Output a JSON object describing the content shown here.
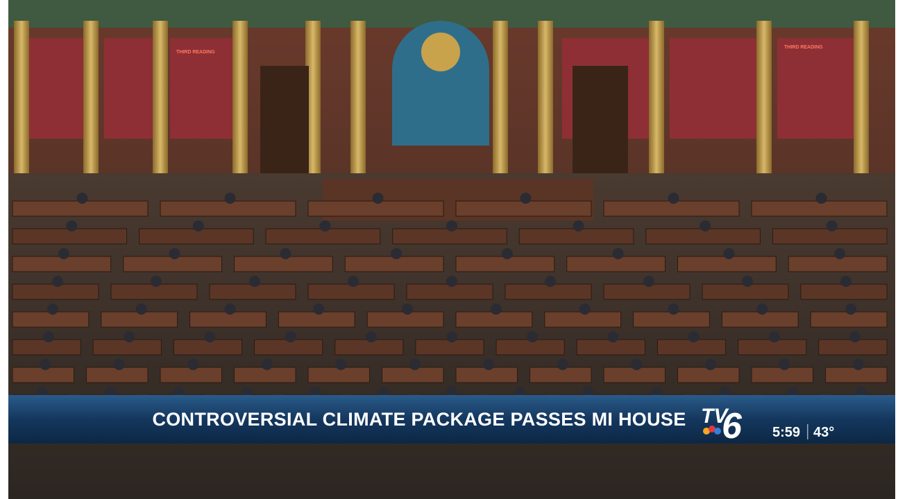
{
  "scene": {
    "signs": [
      "THIRD READING",
      "THIRD READING"
    ]
  },
  "lower_third": {
    "headline": "CONTROVERSIAL CLIMATE PACKAGE PASSES MI HOUSE",
    "station": {
      "call": "TV",
      "number": "6"
    },
    "time": "5:59",
    "temperature": "43°"
  }
}
